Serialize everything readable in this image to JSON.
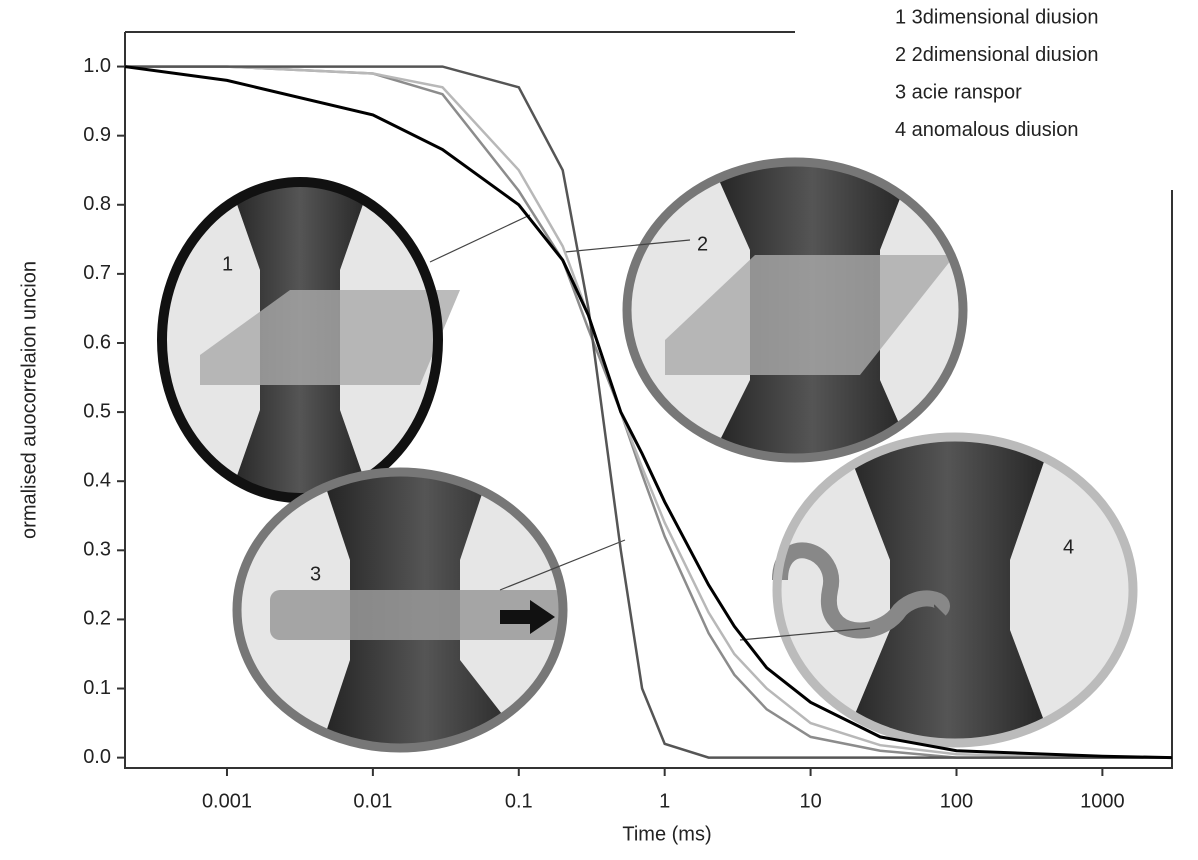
{
  "chart_data": {
    "type": "line",
    "xscale": "log",
    "grid": false,
    "xlabel": "Time (ms)",
    "ylabel": "ormalised auocorrelaion uncion",
    "xlim": [
      0.0002,
      3000
    ],
    "ylim": [
      -0.015,
      1.05
    ],
    "xticks": [
      0.001,
      0.01,
      0.1,
      1,
      10,
      100,
      1000
    ],
    "yticks": [
      {
        "value": 0,
        "label": "0.0"
      },
      0.1,
      0.2,
      0.3,
      0.4,
      0.5,
      0.6,
      0.7,
      0.8,
      0.9,
      {
        "value": 1,
        "label": "1.0"
      }
    ],
    "x": [
      0.0002,
      0.001,
      0.01,
      0.03,
      0.1,
      0.2,
      0.3,
      0.5,
      0.7,
      1,
      2,
      3,
      5,
      10,
      30,
      100,
      1000,
      3000
    ],
    "series": [
      {
        "name": "1 3dimensional diusion",
        "color": "#8c8c8c",
        "values": [
          1.0,
          1.0,
          0.99,
          0.96,
          0.82,
          0.72,
          0.62,
          0.5,
          0.41,
          0.32,
          0.18,
          0.12,
          0.07,
          0.03,
          0.01,
          0.0,
          0.0,
          0.0
        ]
      },
      {
        "name": "2 2dimensional diusion",
        "color": "#b8b8b8",
        "values": [
          1.0,
          1.0,
          0.99,
          0.97,
          0.85,
          0.74,
          0.64,
          0.5,
          0.42,
          0.34,
          0.21,
          0.15,
          0.1,
          0.05,
          0.018,
          0.005,
          0.0,
          0.0
        ]
      },
      {
        "name": "3 acie ranspor",
        "color": "#555555",
        "values": [
          1.0,
          1.0,
          1.0,
          1.0,
          0.97,
          0.85,
          0.65,
          0.3,
          0.1,
          0.02,
          0.0,
          0.0,
          0.0,
          0.0,
          0.0,
          0.0,
          0.0,
          0.0
        ]
      },
      {
        "name": "4 anomalous diusion",
        "color": "#000000",
        "values": [
          1.0,
          0.98,
          0.93,
          0.88,
          0.8,
          0.72,
          0.64,
          0.5,
          0.44,
          0.37,
          0.25,
          0.19,
          0.13,
          0.08,
          0.03,
          0.01,
          0.002,
          0.0
        ]
      }
    ],
    "inset_labels": [
      "1",
      "2",
      "3",
      "4"
    ]
  }
}
